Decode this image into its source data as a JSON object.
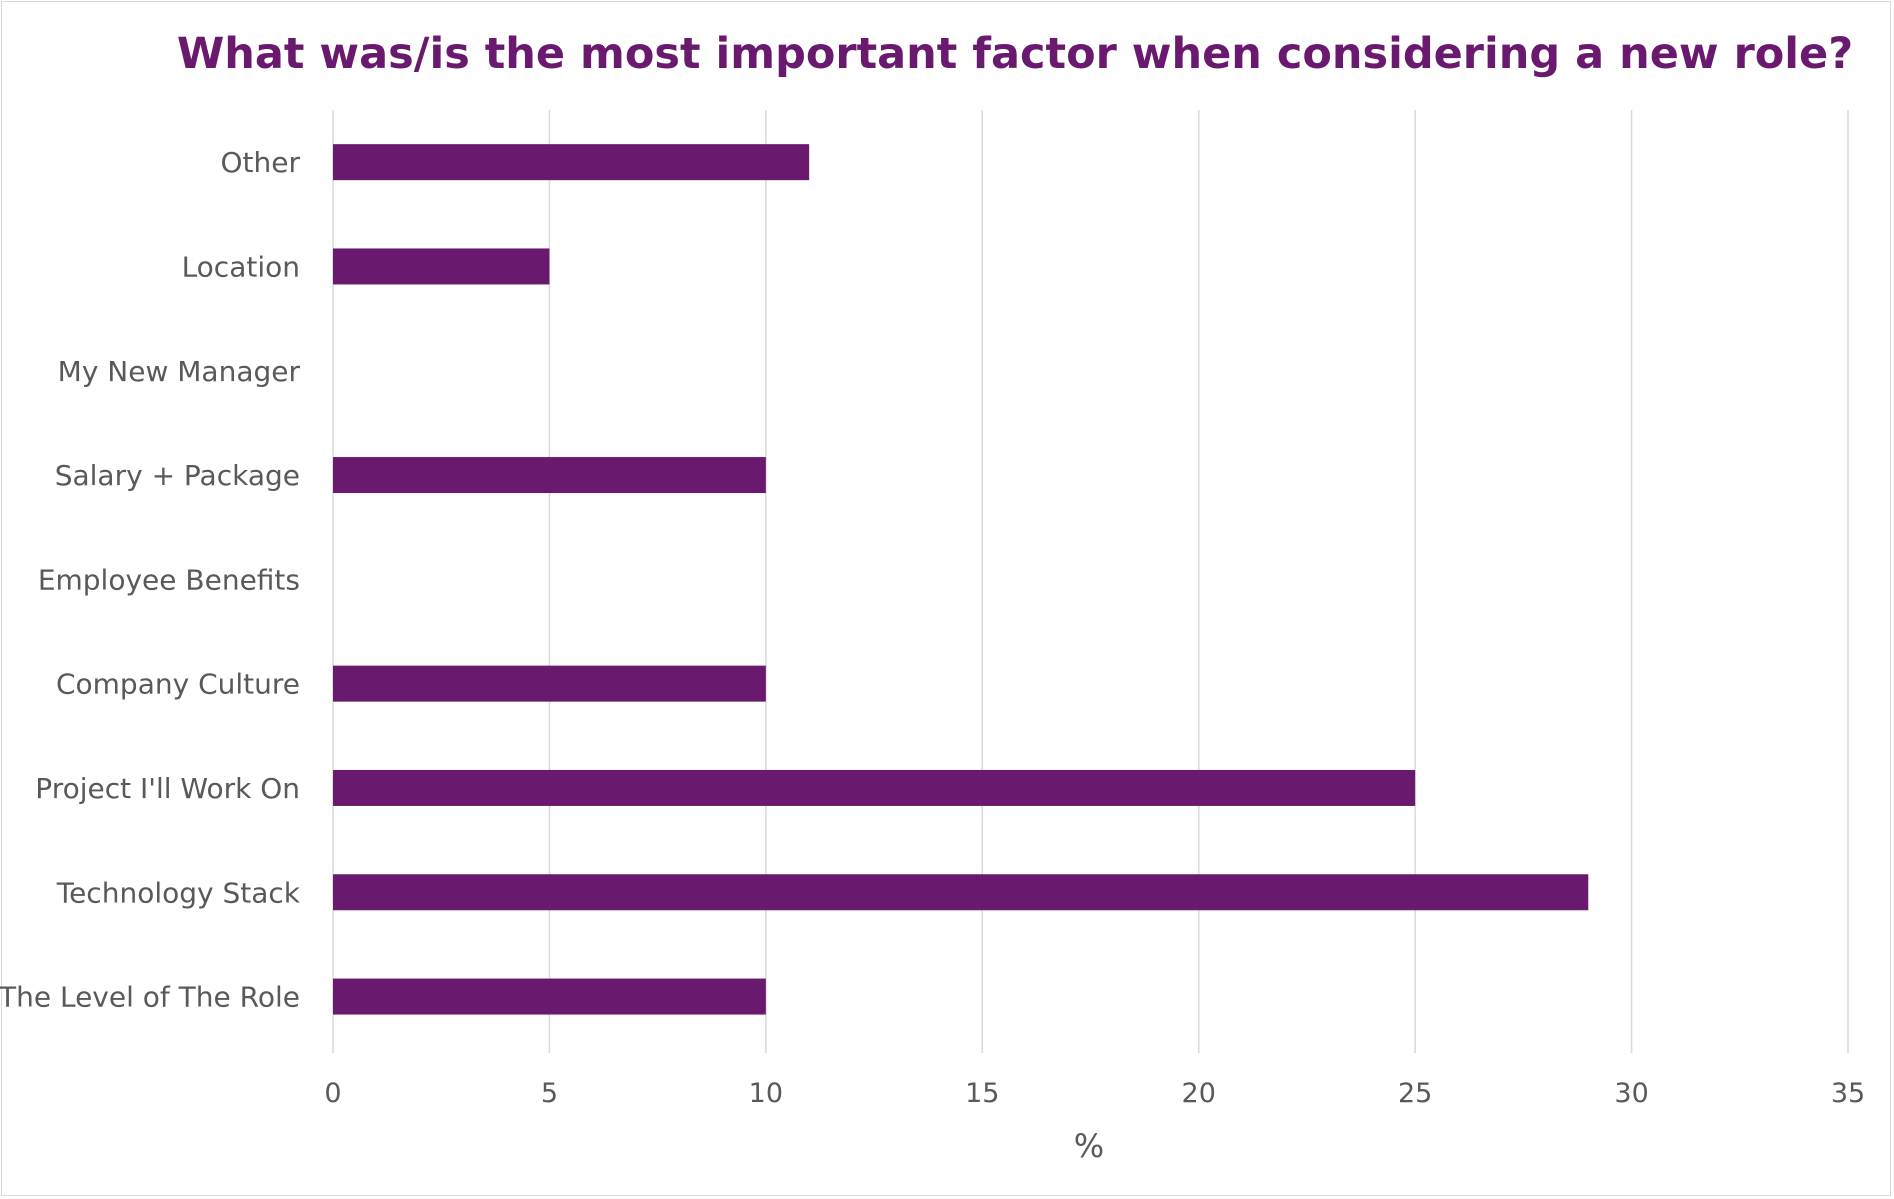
{
  "chart_data": {
    "type": "bar",
    "orientation": "horizontal",
    "title": "What was/is the most important factor when considering a new role?",
    "xlabel": "%",
    "ylabel": "",
    "categories": [
      "Other",
      "Location",
      "My New Manager",
      "Salary + Package",
      "Employee Benefits",
      "Company Culture",
      "Project I'll Work On",
      "Technology Stack",
      "The Level of The Role"
    ],
    "values": [
      11,
      5,
      0,
      10,
      0,
      10,
      25,
      29,
      10
    ],
    "xlim": [
      0,
      35
    ],
    "xticks": [
      0,
      5,
      10,
      15,
      20,
      25,
      30,
      35
    ],
    "grid": "vertical",
    "legend": "none",
    "colors": {
      "bar": "#6a1a6e",
      "title": "#6a1a6e",
      "grid": "#d9d9d9",
      "text": "#595959"
    }
  }
}
